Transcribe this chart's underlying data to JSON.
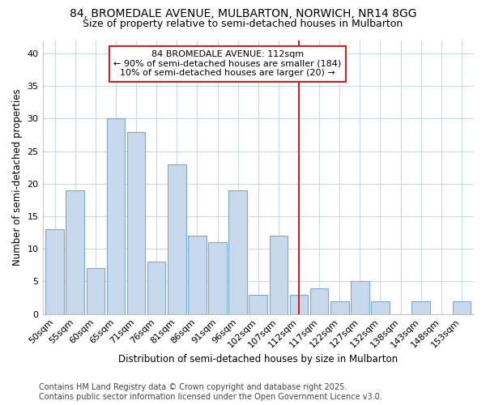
{
  "title_line1": "84, BROMEDALE AVENUE, MULBARTON, NORWICH, NR14 8GG",
  "title_line2": "Size of property relative to semi-detached houses in Mulbarton",
  "xlabel": "Distribution of semi-detached houses by size in Mulbarton",
  "ylabel": "Number of semi-detached properties",
  "footer_line1": "Contains HM Land Registry data © Crown copyright and database right 2025.",
  "footer_line2": "Contains public sector information licensed under the Open Government Licence v3.0.",
  "bar_labels": [
    "50sqm",
    "55sqm",
    "60sqm",
    "65sqm",
    "71sqm",
    "76sqm",
    "81sqm",
    "86sqm",
    "91sqm",
    "96sqm",
    "102sqm",
    "107sqm",
    "112sqm",
    "117sqm",
    "122sqm",
    "127sqm",
    "132sqm",
    "138sqm",
    "143sqm",
    "148sqm",
    "153sqm"
  ],
  "bar_values": [
    13,
    19,
    7,
    30,
    28,
    8,
    23,
    12,
    11,
    19,
    3,
    12,
    3,
    4,
    2,
    5,
    2,
    0,
    2,
    0,
    2
  ],
  "bar_color": "#c8d8ed",
  "bar_edgecolor": "#7aaad0",
  "annotation_title": "84 BROMEDALE AVENUE: 112sqm",
  "annotation_line2": "← 90% of semi-detached houses are smaller (184)",
  "annotation_line3": "10% of semi-detached houses are larger (20) →",
  "marker_index": 12,
  "vline_color": "#cc2222",
  "annotation_box_edgecolor": "#cc2222",
  "ylim": [
    0,
    42
  ],
  "yticks": [
    0,
    5,
    10,
    15,
    20,
    25,
    30,
    35,
    40
  ],
  "background_color": "#ffffff",
  "grid_color": "#c8d8ed",
  "title_fontsize": 10,
  "subtitle_fontsize": 9,
  "axis_label_fontsize": 8.5,
  "tick_fontsize": 8,
  "annotation_fontsize": 8,
  "footer_fontsize": 7
}
